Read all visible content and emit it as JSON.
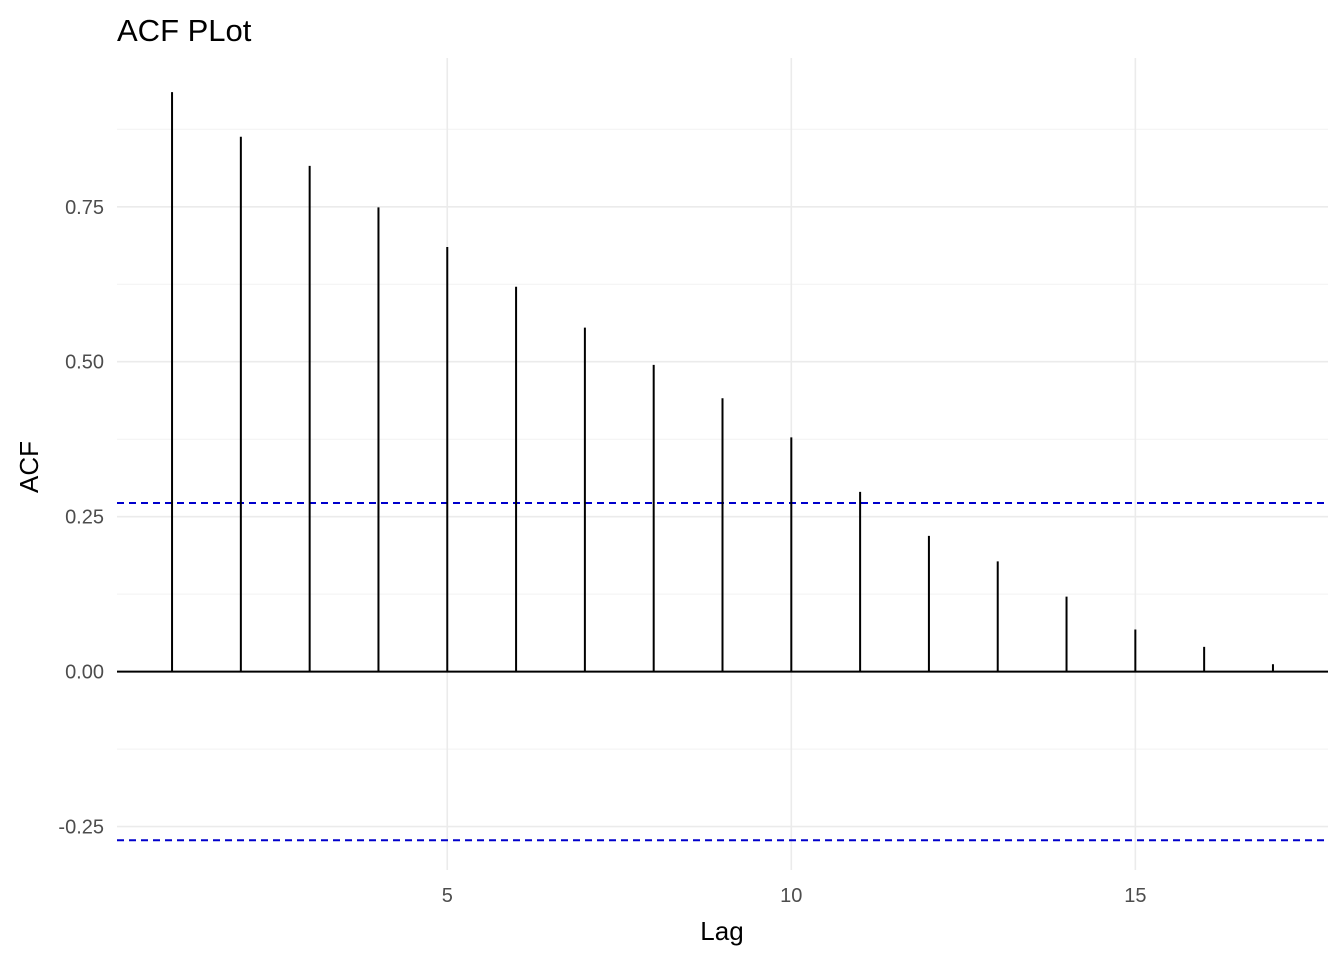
{
  "chart_data": {
    "type": "bar",
    "title": "ACF PLot",
    "xlabel": "Lag",
    "ylabel": "ACF",
    "x": [
      1,
      2,
      3,
      4,
      5,
      6,
      7,
      8,
      9,
      10,
      11,
      12,
      13,
      14,
      15,
      16,
      17
    ],
    "values": [
      0.935,
      0.863,
      0.816,
      0.749,
      0.685,
      0.621,
      0.555,
      0.495,
      0.441,
      0.378,
      0.29,
      0.219,
      0.178,
      0.121,
      0.068,
      0.04,
      0.012
    ],
    "xlim": [
      0.2,
      17.8
    ],
    "ylim": [
      -0.32,
      0.99
    ],
    "x_ticks": [
      5,
      10,
      15
    ],
    "x_tick_labels": [
      "5",
      "10",
      "15"
    ],
    "y_ticks": [
      -0.25,
      0,
      0.25,
      0.5,
      0.75
    ],
    "y_tick_labels": [
      "-0.25",
      "0.00",
      "0.25",
      "0.50",
      "0.75"
    ],
    "confidence_bounds": [
      0.272,
      -0.272
    ],
    "bound_color": "#0000cc",
    "stem_color": "#000000",
    "grid": true,
    "legend": "none"
  }
}
